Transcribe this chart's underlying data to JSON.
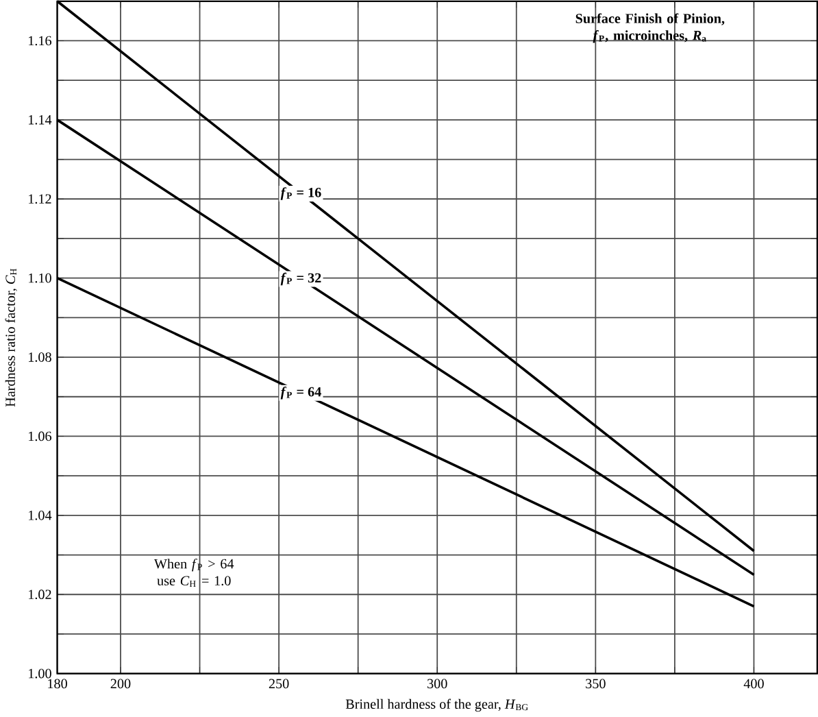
{
  "chart_data": {
    "type": "line",
    "xlabel": "Brinell hardness of the gear, *H*$_{BG}$",
    "ylabel": "Hardness ratio factor, *C*$_{H}$",
    "x": [
      180,
      400
    ],
    "series": [
      {
        "name": "*f*$_{P}$ = 16",
        "color": "#000000",
        "values": [
          1.17,
          1.031
        ]
      },
      {
        "name": "*f*$_{P}$ = 32",
        "color": "#000000",
        "values": [
          1.14,
          1.025
        ]
      },
      {
        "name": "*f*$_{P}$ = 64",
        "color": "#000000",
        "values": [
          1.1,
          1.017
        ]
      }
    ],
    "xlim": [
      180,
      420
    ],
    "xticks": [
      180,
      200,
      {
        "value": 225,
        "label": null
      },
      250,
      {
        "value": 275,
        "label": null
      },
      300,
      {
        "value": 325,
        "label": null
      },
      350,
      {
        "value": 375,
        "label": null
      },
      400
    ],
    "ylim": [
      1.0,
      1.17
    ],
    "yticks": [
      {
        "value": 1.0,
        "label": "1.00"
      },
      {
        "value": 1.01,
        "label": null
      },
      {
        "value": 1.02,
        "label": "1.02"
      },
      {
        "value": 1.03,
        "label": null
      },
      {
        "value": 1.04,
        "label": "1.04"
      },
      {
        "value": 1.05,
        "label": null
      },
      {
        "value": 1.06,
        "label": "1.06"
      },
      {
        "value": 1.07,
        "label": null
      },
      {
        "value": 1.08,
        "label": "1.08"
      },
      {
        "value": 1.09,
        "label": null
      },
      {
        "value": 1.1,
        "label": "1.10"
      },
      {
        "value": 1.11,
        "label": null
      },
      {
        "value": 1.12,
        "label": "1.12"
      },
      {
        "value": 1.13,
        "label": null
      },
      {
        "value": 1.14,
        "label": "1.14"
      },
      {
        "value": 1.15,
        "label": null
      },
      {
        "value": 1.16,
        "label": "1.16"
      }
    ],
    "annotations": [
      "**Surface Finish of Pinion, *f*$_{P}$, microinches, *R*$_{a}$**",
      "When *f*$_{P}$ > 64 use *C*$_{H}$ = 1.0"
    ],
    "grid": true,
    "legend": false,
    "marker": "none",
    "line_style": "solid"
  }
}
